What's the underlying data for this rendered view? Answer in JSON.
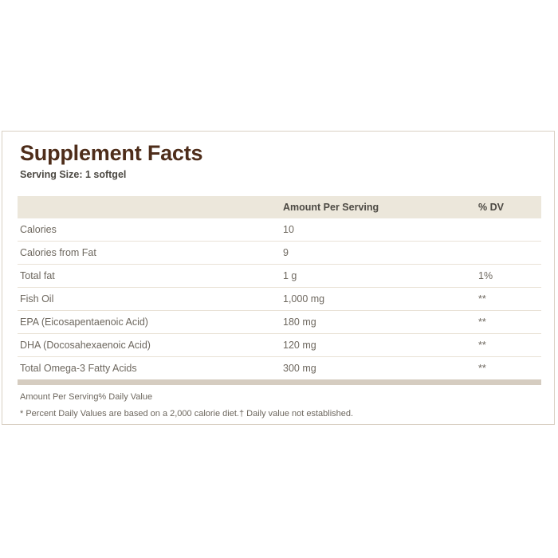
{
  "panel": {
    "title": "Supplement Facts",
    "serving_size": "Serving Size: 1 softgel",
    "table": {
      "nutrient_header": "",
      "amount_header": "Amount Per Serving",
      "dv_header": "% DV",
      "rows": [
        {
          "label": "Calories",
          "amount": "10",
          "dv": ""
        },
        {
          "label": "Calories from Fat",
          "amount": "9",
          "dv": ""
        },
        {
          "label": "Total fat",
          "amount": "1 g",
          "dv": "1%"
        },
        {
          "label": "Fish Oil",
          "amount": "1,000 mg",
          "dv": "**"
        },
        {
          "label": "EPA (Eicosapentaenoic Acid)",
          "amount": "180 mg",
          "dv": "**"
        },
        {
          "label": "DHA (Docosahexaenoic Acid)",
          "amount": "120 mg",
          "dv": "**"
        },
        {
          "label": "Total Omega-3 Fatty Acids",
          "amount": "300 mg",
          "dv": "**"
        }
      ]
    },
    "footnote_legend": "Amount Per Serving% Daily Value",
    "footnote_disclaimer": "* Percent Daily Values are based on a 2,000 calorie diet.† Daily value not established.",
    "colors": {
      "title_text": "#4e2d1a",
      "subtitle_text": "#4c4943",
      "body_text": "#6d675e",
      "table_header_bg": "#ece7db",
      "row_separator": "#e9e2d6",
      "end_bar": "#d5ccc0",
      "card_border": "#d9d0c3",
      "page_bg": "#ffffff"
    }
  }
}
